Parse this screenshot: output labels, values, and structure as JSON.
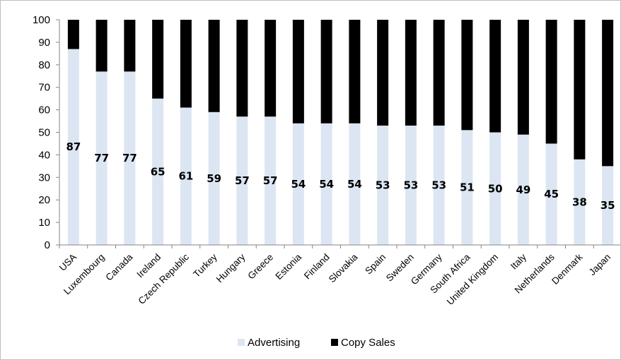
{
  "chart_data": {
    "type": "bar",
    "stacked": true,
    "categories": [
      "USA",
      "Luxembourg",
      "Canada",
      "Ireland",
      "Czech Republic",
      "Turkey",
      "Hungary",
      "Greece",
      "Estonia",
      "Finland",
      "Slovakia",
      "Spain",
      "Sweden",
      "Germany",
      "South Africa",
      "United Kingdom",
      "Italy",
      "Netherlands",
      "Denmark",
      "Japan"
    ],
    "series": [
      {
        "name": "Advertising",
        "color": "#dce6f2",
        "values": [
          87,
          77,
          77,
          65,
          61,
          59,
          57,
          57,
          54,
          54,
          54,
          53,
          53,
          53,
          51,
          50,
          49,
          45,
          38,
          35
        ]
      },
      {
        "name": "Copy Sales",
        "color": "#000000",
        "values": [
          13,
          23,
          23,
          35,
          39,
          41,
          43,
          43,
          46,
          46,
          46,
          47,
          47,
          47,
          49,
          50,
          51,
          55,
          62,
          65
        ]
      }
    ],
    "data_labels": [
      "87",
      "77",
      "77",
      "65",
      "61",
      "59",
      "57",
      "57",
      "54",
      "54",
      "54",
      "53",
      "53",
      "53",
      "51",
      "50",
      "49",
      "45",
      "38",
      "35"
    ],
    "ylim": [
      0,
      100
    ],
    "yticks": [
      "0",
      "10",
      "20",
      "30",
      "40",
      "50",
      "60",
      "70",
      "80",
      "90",
      "100"
    ],
    "grid": false,
    "legend_position": "bottom"
  }
}
